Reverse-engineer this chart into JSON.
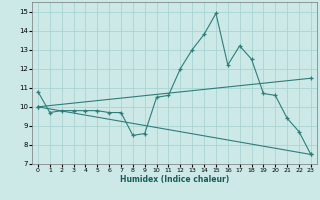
{
  "xlabel": "Humidex (Indice chaleur)",
  "xlim": [
    -0.5,
    23.5
  ],
  "ylim": [
    7,
    15.5
  ],
  "yticks": [
    7,
    8,
    9,
    10,
    11,
    12,
    13,
    14,
    15
  ],
  "xticks": [
    0,
    1,
    2,
    3,
    4,
    5,
    6,
    7,
    8,
    9,
    10,
    11,
    12,
    13,
    14,
    15,
    16,
    17,
    18,
    19,
    20,
    21,
    22,
    23
  ],
  "bg_color": "#cce9e7",
  "grid_color": "#aad4d2",
  "line_color": "#2e7d7a",
  "line1_x": [
    0,
    1,
    2,
    3,
    4,
    5,
    6,
    7,
    8,
    9,
    10,
    11,
    12,
    13,
    14,
    15,
    16,
    17,
    18,
    19,
    20,
    21,
    22,
    23
  ],
  "line1_y": [
    10.8,
    9.7,
    9.8,
    9.8,
    9.8,
    9.8,
    9.7,
    9.7,
    8.5,
    8.6,
    10.5,
    10.6,
    12.0,
    13.0,
    13.8,
    14.9,
    12.2,
    13.2,
    12.5,
    10.7,
    10.6,
    9.4,
    8.7,
    7.5
  ],
  "line2_x": [
    0,
    23
  ],
  "line2_y": [
    10.0,
    11.5
  ],
  "line3_x": [
    0,
    23
  ],
  "line3_y": [
    10.0,
    7.5
  ]
}
